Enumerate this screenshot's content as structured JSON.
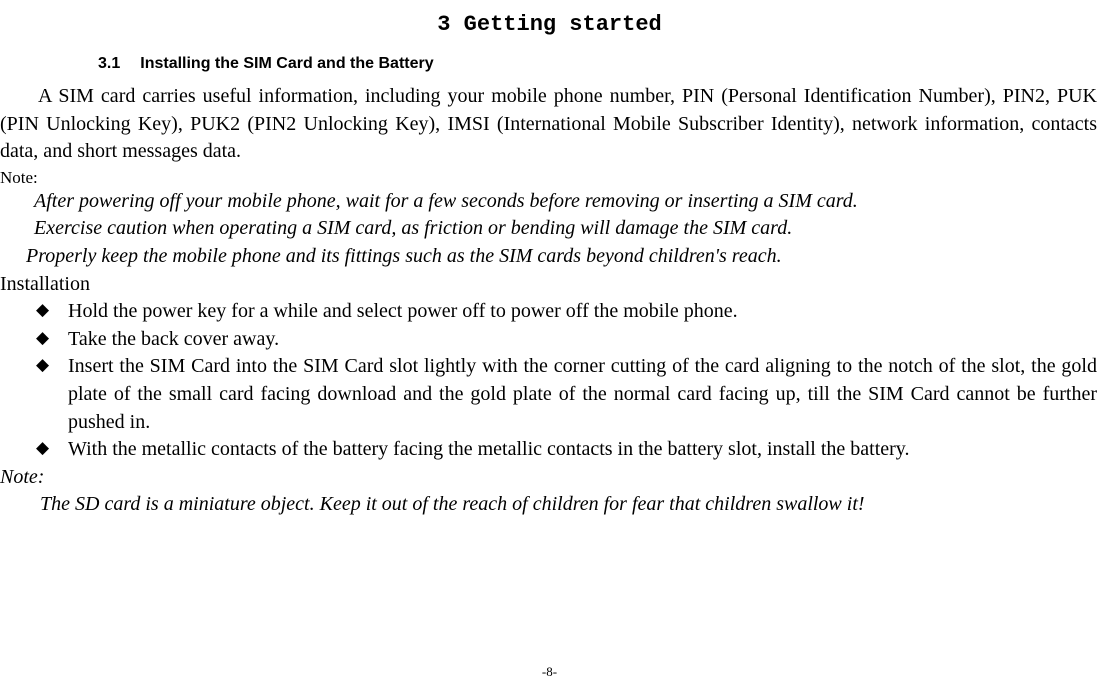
{
  "chapter": {
    "title": "3 Getting started"
  },
  "section": {
    "number": "3.1",
    "title": "Installing the SIM Card and the Battery"
  },
  "intro": "A SIM card carries useful information, including your mobile phone number, PIN (Personal Identification Number), PIN2, PUK (PIN Unlocking Key), PUK2 (PIN2 Unlocking Key), IMSI (International Mobile Subscriber Identity), network information, contacts data, and short messages data.",
  "note1": {
    "label": "Note:",
    "lines": [
      "After powering off your mobile phone, wait for a few seconds before removing or inserting a SIM card.",
      "Exercise caution when operating a SIM card, as friction or bending will damage the SIM card.",
      "Properly keep the mobile phone and its fittings such as the SIM cards beyond children's reach."
    ]
  },
  "installation": {
    "heading": "Installation",
    "steps": [
      "Hold the power key for a while and select power off to power off the mobile phone.",
      "Take the back cover away.",
      "Insert the SIM Card into the SIM Card slot lightly with the corner cutting of the card aligning to the notch of the slot, the gold plate of the small card facing download and the gold plate of the normal card facing up, till the SIM Card cannot be further pushed in.",
      "With the metallic contacts of the battery facing the metallic contacts in the battery slot, install the battery."
    ]
  },
  "note2": {
    "label": "Note:",
    "body": "The SD card is a miniature object. Keep it out of the reach of children for fear that children swallow it!"
  },
  "page": "-8-"
}
